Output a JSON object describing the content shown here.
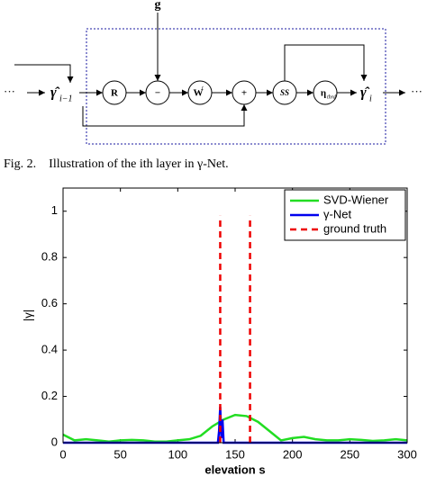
{
  "diagram": {
    "input": {
      "label": "γ̂",
      "sub": "i−1"
    },
    "output": {
      "label": "γ̂",
      "sub": "i"
    },
    "external": "g",
    "ellipsis": "···",
    "nodes": [
      {
        "label": "R",
        "sub": ""
      },
      {
        "label": "−",
        "sub": ""
      },
      {
        "label": "W",
        "sub": "t"
      },
      {
        "label": "+",
        "sub": ""
      },
      {
        "label": "SS",
        "sub": ""
      },
      {
        "label": "η",
        "sub": "thrd"
      }
    ],
    "caption": "Fig. 2.    Illustration of the ith layer in γ-Net."
  },
  "chart_data": {
    "type": "line",
    "xlabel": "elevation s",
    "ylabel": "|γ|",
    "xlim": [
      0,
      300
    ],
    "xticks": [
      0,
      50,
      100,
      150,
      200,
      250,
      300
    ],
    "ylim": [
      0,
      1.1
    ],
    "yticks": [
      0,
      0.2,
      0.4,
      0.6,
      0.8,
      1
    ],
    "legend": "top-right",
    "series": [
      {
        "name": "SVD-Wiener",
        "color": "#22dd22",
        "x": [
          0,
          10,
          20,
          30,
          40,
          50,
          60,
          70,
          80,
          90,
          100,
          110,
          120,
          130,
          140,
          150,
          160,
          170,
          180,
          190,
          200,
          210,
          220,
          230,
          240,
          250,
          260,
          270,
          280,
          290,
          300
        ],
        "values": [
          0.035,
          0.01,
          0.015,
          0.01,
          0.005,
          0.01,
          0.012,
          0.01,
          0.005,
          0.005,
          0.01,
          0.015,
          0.03,
          0.07,
          0.1,
          0.12,
          0.115,
          0.09,
          0.05,
          0.01,
          0.02,
          0.025,
          0.015,
          0.01,
          0.01,
          0.015,
          0.012,
          0.008,
          0.01,
          0.015,
          0.01
        ]
      },
      {
        "name": "γ-Net",
        "color": "#0000ee",
        "x": [
          0,
          135,
          136,
          137,
          138,
          139,
          140,
          300
        ],
        "values": [
          0,
          0,
          0.05,
          0.155,
          0.02,
          0.1,
          0,
          0
        ]
      },
      {
        "name": "ground truth",
        "color": "#ee0000",
        "dashed": true,
        "stem": true,
        "x": [
          137,
          163
        ],
        "values": [
          0.98,
          0.98
        ]
      }
    ]
  }
}
